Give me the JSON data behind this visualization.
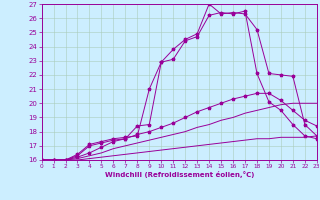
{
  "bg_color": "#cceeff",
  "line_color": "#990099",
  "xlabel": "Windchill (Refroidissement éolien,°C)",
  "xlim": [
    0,
    23
  ],
  "ylim": [
    16,
    27
  ],
  "xticks": [
    0,
    1,
    2,
    3,
    4,
    5,
    6,
    7,
    8,
    9,
    10,
    11,
    12,
    13,
    14,
    15,
    16,
    17,
    18,
    19,
    20,
    21,
    22,
    23
  ],
  "yticks": [
    16,
    17,
    18,
    19,
    20,
    21,
    22,
    23,
    24,
    25,
    26,
    27
  ],
  "l1x": [
    0,
    1,
    2,
    3,
    4,
    5,
    6,
    7,
    8,
    9,
    10,
    11,
    12,
    13,
    14,
    15,
    16,
    17,
    18,
    19,
    20,
    21,
    22,
    23
  ],
  "l1y": [
    16,
    16,
    16,
    16,
    16.1,
    16.2,
    16.3,
    16.4,
    16.5,
    16.6,
    16.7,
    16.8,
    16.9,
    17.0,
    17.1,
    17.2,
    17.3,
    17.4,
    17.5,
    17.5,
    17.6,
    17.6,
    17.6,
    17.7
  ],
  "l2x": [
    0,
    1,
    2,
    3,
    4,
    5,
    6,
    7,
    8,
    9,
    10,
    11,
    12,
    13,
    14,
    15,
    16,
    17,
    18,
    19,
    20,
    21,
    22,
    23
  ],
  "l2y": [
    16,
    16,
    16,
    16.1,
    16.3,
    16.5,
    16.8,
    17.0,
    17.2,
    17.4,
    17.6,
    17.8,
    18.0,
    18.3,
    18.5,
    18.8,
    19.0,
    19.3,
    19.5,
    19.7,
    19.9,
    20.0,
    20.0,
    20.0
  ],
  "l3x": [
    0,
    1,
    2,
    3,
    4,
    5,
    6,
    7,
    8,
    9,
    10,
    11,
    12,
    13,
    14,
    15,
    16,
    17,
    18,
    19,
    20,
    21,
    22,
    23
  ],
  "l3y": [
    16,
    16,
    16,
    16.2,
    16.5,
    16.9,
    17.3,
    17.5,
    17.8,
    18.0,
    18.3,
    18.6,
    19.0,
    19.4,
    19.7,
    20.0,
    20.3,
    20.5,
    20.7,
    20.7,
    20.2,
    19.5,
    18.8,
    18.4
  ],
  "l4x": [
    0,
    1,
    2,
    3,
    4,
    5,
    6,
    7,
    8,
    9,
    10,
    11,
    12,
    13,
    14,
    15,
    16,
    17,
    18,
    19,
    20,
    21,
    22,
    23
  ],
  "l4y": [
    16,
    16,
    16,
    16.3,
    17.0,
    17.2,
    17.4,
    17.5,
    18.4,
    18.5,
    22.9,
    23.8,
    24.5,
    24.9,
    27.0,
    26.3,
    26.4,
    26.3,
    25.2,
    22.1,
    22.0,
    21.9,
    18.5,
    17.7
  ],
  "l5x": [
    0,
    1,
    2,
    3,
    4,
    5,
    6,
    7,
    8,
    9,
    10,
    11,
    12,
    13,
    14,
    15,
    16,
    17,
    18,
    19,
    20,
    21,
    22,
    23
  ],
  "l5y": [
    16,
    16,
    16,
    16.4,
    17.1,
    17.3,
    17.5,
    17.6,
    17.7,
    21.0,
    22.9,
    23.1,
    24.4,
    24.7,
    26.2,
    26.4,
    26.3,
    26.5,
    22.1,
    20.1,
    19.5,
    18.5,
    17.7,
    17.5
  ]
}
